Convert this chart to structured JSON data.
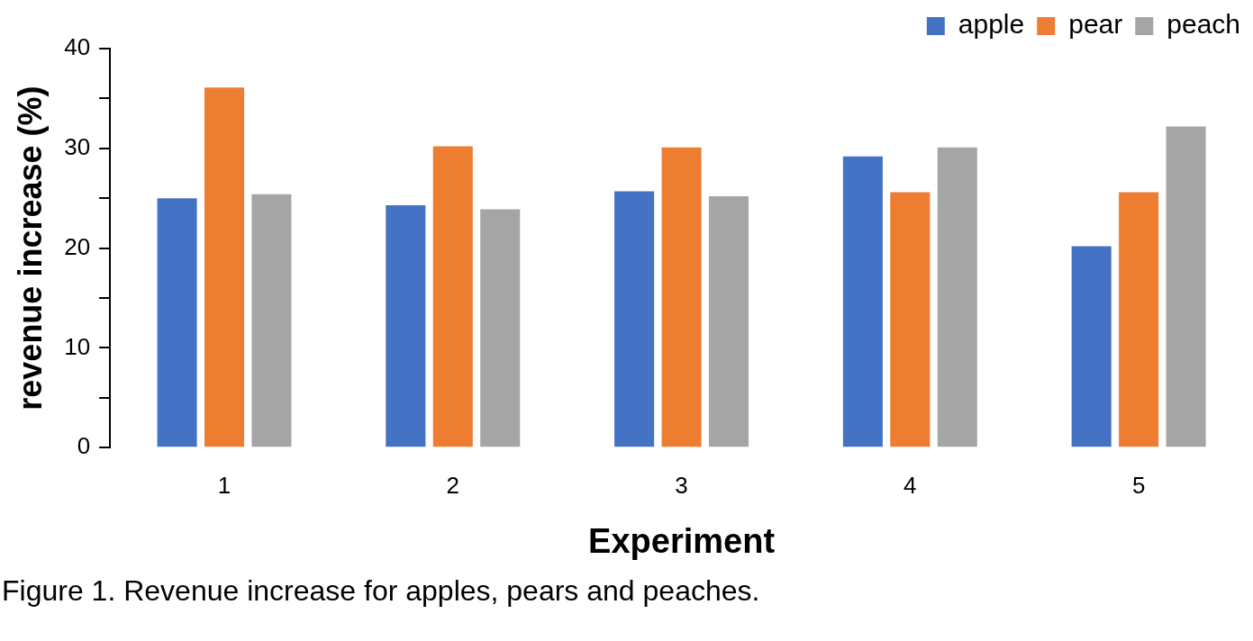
{
  "chart_data": {
    "type": "bar",
    "xlabel": "Experiment",
    "ylabel": "revenue increase (%)",
    "categories": [
      "1",
      "2",
      "3",
      "4",
      "5"
    ],
    "series": [
      {
        "name": "apple",
        "color": "#4472c4",
        "values": [
          25.0,
          24.3,
          25.7,
          29.2,
          20.2
        ]
      },
      {
        "name": "pear",
        "color": "#ed7d31",
        "values": [
          36.1,
          30.2,
          30.1,
          25.6,
          25.6
        ]
      },
      {
        "name": "peach",
        "color": "#a5a5a5",
        "values": [
          25.4,
          23.9,
          25.2,
          30.1,
          32.2
        ]
      }
    ],
    "ylim": [
      0,
      40
    ],
    "yticks": [
      0,
      {
        "value": 5,
        "label": null
      },
      10,
      {
        "value": 15,
        "label": null
      },
      20,
      {
        "value": 25,
        "label": null
      },
      30,
      {
        "value": 35,
        "label": null
      },
      40
    ],
    "grid": false,
    "legend": "top right",
    "annotations": [
      "Figure 1. Revenue increase for apples, pears and peaches."
    ]
  }
}
